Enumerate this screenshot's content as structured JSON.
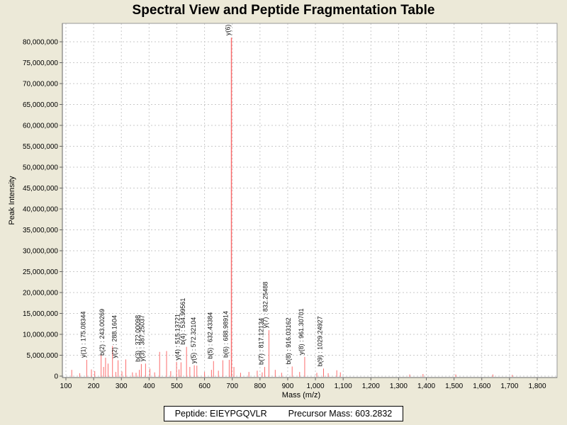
{
  "title": "Spectral View and Peptide Fragmentation Table",
  "footer": {
    "peptide": "Peptide: EIEYPGQVLR",
    "precursor": "Precursor Mass: 603.2832"
  },
  "colors": {
    "window_background": "#ECE9D8",
    "plot_background": "#FFFFFF",
    "peak": "#FB6D6D",
    "grid": "#C9C9C9",
    "axis": "#666666",
    "border": "#999999",
    "label_text": "#111111"
  },
  "chart_data": {
    "type": "bar",
    "title": "Spectral View and Peptide Fragmentation Table",
    "xlabel": "Mass (m/z)",
    "ylabel": "Peak Intensity",
    "grid": true,
    "x_axis": {
      "min": 100,
      "max": 1800,
      "tick_step": 100,
      "tick_labels": [
        "100",
        "200",
        "300",
        "400",
        "500",
        "600",
        "700",
        "800",
        "900",
        "1,000",
        "1,100",
        "1,200",
        "1,300",
        "1,400",
        "1,500",
        "1,600",
        "1,700",
        "1,800"
      ]
    },
    "y_axis": {
      "min": 0,
      "max": 80000000,
      "tick_step": 5000000,
      "tick_labels": [
        "0",
        "5,000,000",
        "10,000,000",
        "15,000,000",
        "20,000,000",
        "25,000,000",
        "30,000,000",
        "35,000,000",
        "40,000,000",
        "45,000,000",
        "50,000,000",
        "55,000,000",
        "60,000,000",
        "65,000,000",
        "70,000,000",
        "75,000,000",
        "80,000,000"
      ]
    },
    "peaks": [
      {
        "mz": 121,
        "intensity": 1500000,
        "label": null
      },
      {
        "mz": 150,
        "intensity": 700000,
        "label": null
      },
      {
        "mz": 175.08344,
        "intensity": 3900000,
        "label": "y(1) : 175.08344"
      },
      {
        "mz": 192,
        "intensity": 1600000,
        "label": null
      },
      {
        "mz": 204,
        "intensity": 1200000,
        "label": null
      },
      {
        "mz": 227,
        "intensity": 5000000,
        "label": null
      },
      {
        "mz": 236,
        "intensity": 2200000,
        "label": null
      },
      {
        "mz": 243.00269,
        "intensity": 4400000,
        "label": "b(2) : 243.00269"
      },
      {
        "mz": 252,
        "intensity": 3000000,
        "label": null
      },
      {
        "mz": 268,
        "intensity": 7200000,
        "label": null
      },
      {
        "mz": 280,
        "intensity": 1000000,
        "label": null
      },
      {
        "mz": 288.1604,
        "intensity": 3800000,
        "label": "y(2) : 288.1604"
      },
      {
        "mz": 302,
        "intensity": 1100000,
        "label": null
      },
      {
        "mz": 316,
        "intensity": 4000000,
        "label": null
      },
      {
        "mz": 340,
        "intensity": 900000,
        "label": null
      },
      {
        "mz": 353,
        "intensity": 800000,
        "label": null
      },
      {
        "mz": 365,
        "intensity": 1500000,
        "label": null
      },
      {
        "mz": 372.00098,
        "intensity": 2900000,
        "label": "b(3) : 372.00098"
      },
      {
        "mz": 387.25037,
        "intensity": 3000000,
        "label": "y(3) : 387.25037"
      },
      {
        "mz": 403,
        "intensity": 1800000,
        "label": null
      },
      {
        "mz": 420,
        "intensity": 900000,
        "label": null
      },
      {
        "mz": 438,
        "intensity": 5800000,
        "label": null
      },
      {
        "mz": 463,
        "intensity": 6000000,
        "label": null
      },
      {
        "mz": 478,
        "intensity": 1200000,
        "label": null
      },
      {
        "mz": 499,
        "intensity": 3400000,
        "label": null
      },
      {
        "mz": 508,
        "intensity": 1600000,
        "label": null
      },
      {
        "mz": 515.13721,
        "intensity": 3300000,
        "label": "y(4) : 515.13721"
      },
      {
        "mz": 534.99561,
        "intensity": 7000000,
        "label": "b(4) : 534.99561"
      },
      {
        "mz": 547,
        "intensity": 2200000,
        "label": null
      },
      {
        "mz": 563,
        "intensity": 2600000,
        "label": null
      },
      {
        "mz": 572.32104,
        "intensity": 2500000,
        "label": "y(5) : 572.32104"
      },
      {
        "mz": 600,
        "intensity": 1000000,
        "label": null
      },
      {
        "mz": 625,
        "intensity": 1500000,
        "label": null
      },
      {
        "mz": 632.43384,
        "intensity": 3600000,
        "label": "b(5) : 632.43384"
      },
      {
        "mz": 650,
        "intensity": 1300000,
        "label": null
      },
      {
        "mz": 666,
        "intensity": 3800000,
        "label": null
      },
      {
        "mz": 688.98914,
        "intensity": 3900000,
        "label": "b(6) : 688.98914"
      },
      {
        "mz": 697,
        "intensity": 81000000,
        "label": "y(6) :"
      },
      {
        "mz": 706,
        "intensity": 2200000,
        "label": null
      },
      {
        "mz": 730,
        "intensity": 800000,
        "label": null
      },
      {
        "mz": 760,
        "intensity": 1000000,
        "label": null
      },
      {
        "mz": 790,
        "intensity": 1300000,
        "label": null
      },
      {
        "mz": 808,
        "intensity": 900000,
        "label": null
      },
      {
        "mz": 817.12134,
        "intensity": 2200000,
        "label": "b(7) : 817.12134"
      },
      {
        "mz": 832.25488,
        "intensity": 11000000,
        "label": "y(7) : 832.25488"
      },
      {
        "mz": 855,
        "intensity": 1500000,
        "label": null
      },
      {
        "mz": 878,
        "intensity": 800000,
        "label": null
      },
      {
        "mz": 916.03162,
        "intensity": 2300000,
        "label": "b(8) : 916.03162"
      },
      {
        "mz": 943,
        "intensity": 1000000,
        "label": null
      },
      {
        "mz": 961.30701,
        "intensity": 4600000,
        "label": "y(8) : 961.30701"
      },
      {
        "mz": 1005,
        "intensity": 800000,
        "label": null
      },
      {
        "mz": 1029.24927,
        "intensity": 1800000,
        "label": "b(9) : 1029.24927"
      },
      {
        "mz": 1046,
        "intensity": 700000,
        "label": null
      },
      {
        "mz": 1077,
        "intensity": 1400000,
        "label": null
      },
      {
        "mz": 1090,
        "intensity": 900000,
        "label": null
      },
      {
        "mz": 1340,
        "intensity": 400000,
        "label": null
      },
      {
        "mz": 1388,
        "intensity": 500000,
        "label": null
      },
      {
        "mz": 1506,
        "intensity": 400000,
        "label": null
      },
      {
        "mz": 1640,
        "intensity": 400000,
        "label": null
      },
      {
        "mz": 1710,
        "intensity": 300000,
        "label": null
      }
    ]
  }
}
